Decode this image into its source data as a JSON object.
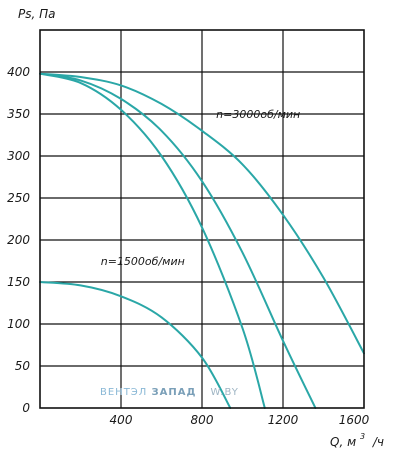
{
  "chart_data": {
    "type": "line",
    "ylabel": "Ps, Па",
    "xlabel_main": "Q,  м",
    "xlabel_sup": "3",
    "xlabel_tail": "/ч",
    "xlim": [
      0,
      1600
    ],
    "ylim": [
      0,
      450
    ],
    "x_ticks": [
      400,
      800,
      1200,
      1600
    ],
    "y_ticks": [
      0,
      50,
      100,
      150,
      200,
      250,
      300,
      350,
      400
    ],
    "grid": true,
    "vertical_grid": [
      400,
      800,
      1200
    ],
    "horizontal_grid": [
      50,
      100,
      150,
      200,
      250,
      300,
      350,
      400
    ],
    "series_color": "#2aa7a7",
    "series": [
      {
        "x": [
          0,
          200,
          400,
          600,
          800,
          940
        ],
        "y": [
          150,
          146,
          133,
          108,
          60,
          0
        ]
      },
      {
        "x": [
          0,
          200,
          400,
          600,
          800,
          1000,
          1110
        ],
        "y": [
          398,
          387,
          355,
          300,
          215,
          95,
          0
        ]
      },
      {
        "x": [
          0,
          200,
          400,
          600,
          800,
          1000,
          1200,
          1360
        ],
        "y": [
          398,
          390,
          368,
          330,
          270,
          185,
          80,
          0
        ]
      },
      {
        "x": [
          0,
          200,
          400,
          600,
          800,
          1000,
          1200,
          1400,
          1600
        ],
        "y": [
          398,
          394,
          384,
          362,
          330,
          290,
          230,
          155,
          65
        ]
      }
    ],
    "annotations": [
      {
        "text": "n=3000об/мин",
        "x": 870,
        "y": 345
      },
      {
        "text": "n=1500об/мин",
        "x": 300,
        "y": 170
      }
    ]
  },
  "watermark": {
    "part1": "ВЕНТЭЛ",
    "part2": "ЗАПАД",
    "part3": "W.BY",
    "color1": "#8ab8d6",
    "color2": "#7a9fb8",
    "color3": "#9fb5c4"
  }
}
